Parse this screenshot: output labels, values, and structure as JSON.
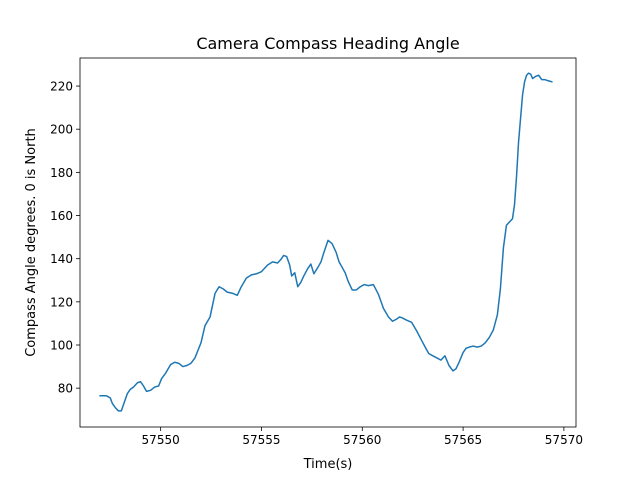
{
  "chart_data": {
    "type": "line",
    "title": "Camera Compass Heading Angle",
    "xlabel": "Time(s)",
    "ylabel": "Compass Angle degrees. 0 is North",
    "xlim": [
      57546.0,
      57570.6
    ],
    "ylim": [
      62.0,
      233.0
    ],
    "x_ticks": [
      57550,
      57555,
      57560,
      57565,
      57570
    ],
    "x_tick_labels": [
      "57550",
      "57555",
      "57560",
      "57565",
      "57570"
    ],
    "y_ticks": [
      80,
      100,
      120,
      140,
      160,
      180,
      200,
      220
    ],
    "y_tick_labels": [
      "80",
      "100",
      "120",
      "140",
      "160",
      "180",
      "200",
      "220"
    ],
    "grid": false,
    "legend": "none",
    "series": [
      {
        "color": "#1f77b4",
        "x": [
          57547.0,
          57547.3,
          57547.5,
          57547.6,
          57547.75,
          57547.9,
          57548.05,
          57548.2,
          57548.35,
          57548.5,
          57548.65,
          57548.85,
          57549.0,
          57549.15,
          57549.3,
          57549.5,
          57549.7,
          57549.9,
          57550.05,
          57550.25,
          57550.5,
          57550.7,
          57550.9,
          57551.1,
          57551.3,
          57551.5,
          57551.7,
          57551.85,
          57552.0,
          57552.2,
          57552.45,
          57552.7,
          57552.9,
          57553.1,
          57553.3,
          57553.55,
          57553.8,
          57554.0,
          57554.25,
          57554.5,
          57554.75,
          57555.0,
          57555.3,
          57555.55,
          57555.8,
          57555.95,
          57556.1,
          57556.25,
          57556.4,
          57556.5,
          57556.65,
          57556.8,
          57556.95,
          57557.1,
          57557.3,
          57557.45,
          57557.6,
          57557.8,
          57557.95,
          57558.1,
          57558.3,
          57558.5,
          57558.7,
          57558.85,
          57559.0,
          57559.15,
          57559.3,
          57559.5,
          57559.7,
          57559.9,
          57560.1,
          57560.3,
          57560.55,
          57560.8,
          57561.05,
          57561.3,
          57561.5,
          57561.7,
          57561.85,
          57562.0,
          57562.2,
          57562.45,
          57562.7,
          57562.95,
          57563.15,
          57563.3,
          57563.5,
          57563.7,
          57563.9,
          57564.1,
          57564.3,
          57564.5,
          57564.65,
          57564.8,
          57565.0,
          57565.15,
          57565.3,
          57565.5,
          57565.7,
          57565.9,
          57566.1,
          57566.3,
          57566.5,
          57566.7,
          57566.85,
          57567.0,
          57567.15,
          57567.3,
          57567.45,
          57567.55,
          57567.65,
          57567.75,
          57567.85,
          57567.95,
          57568.05,
          57568.15,
          57568.25,
          57568.35,
          57568.45,
          57568.6,
          57568.75,
          57568.9,
          57569.05,
          57569.2,
          57569.4
        ],
        "y": [
          76.5,
          76.5,
          75.5,
          73.0,
          71.0,
          69.5,
          69.5,
          73.5,
          77.5,
          79.5,
          80.5,
          82.5,
          83.0,
          81.0,
          78.5,
          79.0,
          80.5,
          81.0,
          84.5,
          87.0,
          91.0,
          92.0,
          91.5,
          90.0,
          90.5,
          91.5,
          94.0,
          97.5,
          101.0,
          109.0,
          113.0,
          124.0,
          127.0,
          126.0,
          124.5,
          124.0,
          123.0,
          127.0,
          131.0,
          132.5,
          133.0,
          134.0,
          137.0,
          138.5,
          138.0,
          139.5,
          141.5,
          141.0,
          137.0,
          132.0,
          133.5,
          127.0,
          129.0,
          132.0,
          135.5,
          137.5,
          133.0,
          136.0,
          138.5,
          143.0,
          148.5,
          147.0,
          143.0,
          138.5,
          136.0,
          133.5,
          129.5,
          125.5,
          125.5,
          127.0,
          128.0,
          127.5,
          128.0,
          123.5,
          117.0,
          113.0,
          111.0,
          112.0,
          113.0,
          112.5,
          111.5,
          110.5,
          106.5,
          102.0,
          98.5,
          96.0,
          95.0,
          94.0,
          93.0,
          95.0,
          90.5,
          88.0,
          89.0,
          92.0,
          96.5,
          98.5,
          99.0,
          99.5,
          99.0,
          99.5,
          101.0,
          103.5,
          107.0,
          114.0,
          126.0,
          145.0,
          155.5,
          157.0,
          158.5,
          165.0,
          178.0,
          194.0,
          205.0,
          216.0,
          222.0,
          225.0,
          226.0,
          225.5,
          223.5,
          224.5,
          225.0,
          223.0,
          223.0,
          222.5,
          222.0
        ]
      }
    ]
  }
}
